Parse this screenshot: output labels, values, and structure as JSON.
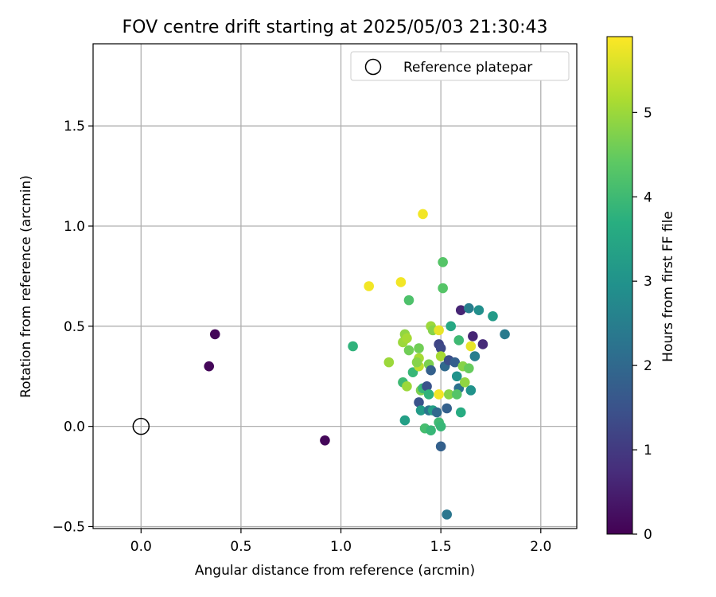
{
  "chart_data": {
    "type": "scatter",
    "title": "FOV centre drift starting at 2025/05/03 21:30:43",
    "xlabel": "Angular distance from reference (arcmin)",
    "ylabel": "Rotation from reference (arcmin)",
    "xlim": [
      -0.24,
      2.18
    ],
    "ylim": [
      -0.51,
      1.91
    ],
    "xticks": [
      0.0,
      0.5,
      1.0,
      1.5,
      2.0
    ],
    "xtick_labels": [
      "0.0",
      "0.5",
      "1.0",
      "1.5",
      "2.0"
    ],
    "yticks": [
      -0.5,
      0.0,
      0.5,
      1.0,
      1.5
    ],
    "ytick_labels": [
      "−0.5",
      "0.0",
      "0.5",
      "1.0",
      "1.5"
    ],
    "grid": true,
    "legend": {
      "placement": "top-right",
      "entries": [
        "Reference platepar"
      ]
    },
    "reference_point": {
      "name": "Reference platepar",
      "x": 0.0,
      "y": 0.0
    },
    "colorbar": {
      "label": "Hours from first FF file",
      "colormap": "viridis",
      "range": [
        0,
        5.9
      ],
      "ticks": [
        0,
        1,
        2,
        3,
        4,
        5
      ],
      "tick_labels": [
        "0",
        "1",
        "2",
        "3",
        "4",
        "5"
      ]
    },
    "points": [
      {
        "x": 0.37,
        "y": 0.46,
        "t": 0.1
      },
      {
        "x": 0.34,
        "y": 0.3,
        "t": 0.1
      },
      {
        "x": 0.92,
        "y": -0.07,
        "t": 0.1
      },
      {
        "x": 1.41,
        "y": 1.06,
        "t": 5.8
      },
      {
        "x": 1.14,
        "y": 0.7,
        "t": 5.8
      },
      {
        "x": 1.3,
        "y": 0.72,
        "t": 5.8
      },
      {
        "x": 1.51,
        "y": 0.82,
        "t": 4.3
      },
      {
        "x": 1.51,
        "y": 0.69,
        "t": 4.3
      },
      {
        "x": 1.34,
        "y": 0.63,
        "t": 4.2
      },
      {
        "x": 1.06,
        "y": 0.4,
        "t": 3.8
      },
      {
        "x": 1.24,
        "y": 0.32,
        "t": 5.0
      },
      {
        "x": 1.31,
        "y": 0.22,
        "t": 4.0
      },
      {
        "x": 1.33,
        "y": 0.2,
        "t": 5.0
      },
      {
        "x": 1.32,
        "y": 0.03,
        "t": 3.3
      },
      {
        "x": 1.32,
        "y": 0.46,
        "t": 4.9
      },
      {
        "x": 1.31,
        "y": 0.42,
        "t": 5.0
      },
      {
        "x": 1.34,
        "y": 0.38,
        "t": 4.6
      },
      {
        "x": 1.33,
        "y": 0.44,
        "t": 5.1
      },
      {
        "x": 1.36,
        "y": 0.27,
        "t": 3.9
      },
      {
        "x": 1.39,
        "y": 0.39,
        "t": 4.6
      },
      {
        "x": 1.39,
        "y": 0.3,
        "t": 5.3
      },
      {
        "x": 1.39,
        "y": 0.34,
        "t": 5.1
      },
      {
        "x": 1.38,
        "y": 0.32,
        "t": 4.8
      },
      {
        "x": 1.4,
        "y": 0.18,
        "t": 4.7
      },
      {
        "x": 1.41,
        "y": 0.19,
        "t": 3.9
      },
      {
        "x": 1.39,
        "y": 0.12,
        "t": 1.5
      },
      {
        "x": 1.4,
        "y": 0.08,
        "t": 3.2
      },
      {
        "x": 1.43,
        "y": 0.2,
        "t": 1.5
      },
      {
        "x": 1.44,
        "y": 0.16,
        "t": 3.8
      },
      {
        "x": 1.44,
        "y": 0.31,
        "t": 4.7
      },
      {
        "x": 1.45,
        "y": 0.28,
        "t": 1.8
      },
      {
        "x": 1.42,
        "y": -0.01,
        "t": 4.1
      },
      {
        "x": 1.45,
        "y": -0.02,
        "t": 3.9
      },
      {
        "x": 1.44,
        "y": 0.08,
        "t": 2.3
      },
      {
        "x": 1.46,
        "y": 0.08,
        "t": 3.3
      },
      {
        "x": 1.45,
        "y": 0.5,
        "t": 5.0
      },
      {
        "x": 1.46,
        "y": 0.48,
        "t": 4.8
      },
      {
        "x": 1.49,
        "y": 0.48,
        "t": 5.7
      },
      {
        "x": 1.49,
        "y": 0.41,
        "t": 1.2
      },
      {
        "x": 1.5,
        "y": 0.39,
        "t": 1.3
      },
      {
        "x": 1.5,
        "y": 0.35,
        "t": 5.1
      },
      {
        "x": 1.49,
        "y": 0.16,
        "t": 5.8
      },
      {
        "x": 1.49,
        "y": 0.02,
        "t": 4.0
      },
      {
        "x": 1.5,
        "y": 0.0,
        "t": 3.9
      },
      {
        "x": 1.48,
        "y": 0.07,
        "t": 2.0
      },
      {
        "x": 1.5,
        "y": -0.1,
        "t": 1.8
      },
      {
        "x": 1.52,
        "y": 0.3,
        "t": 2.0
      },
      {
        "x": 1.54,
        "y": 0.33,
        "t": 1.4
      },
      {
        "x": 1.55,
        "y": 0.5,
        "t": 3.5
      },
      {
        "x": 1.53,
        "y": 0.09,
        "t": 1.8
      },
      {
        "x": 1.54,
        "y": 0.16,
        "t": 4.8
      },
      {
        "x": 1.53,
        "y": -0.44,
        "t": 2.3
      },
      {
        "x": 1.57,
        "y": 0.32,
        "t": 1.8
      },
      {
        "x": 1.59,
        "y": 0.43,
        "t": 4.0
      },
      {
        "x": 1.58,
        "y": 0.25,
        "t": 3.0
      },
      {
        "x": 1.59,
        "y": 0.19,
        "t": 2.2
      },
      {
        "x": 1.58,
        "y": 0.16,
        "t": 4.3
      },
      {
        "x": 1.6,
        "y": 0.07,
        "t": 3.6
      },
      {
        "x": 1.61,
        "y": 0.3,
        "t": 4.8
      },
      {
        "x": 1.62,
        "y": 0.22,
        "t": 4.9
      },
      {
        "x": 1.64,
        "y": 0.29,
        "t": 4.5
      },
      {
        "x": 1.6,
        "y": 0.58,
        "t": 0.6
      },
      {
        "x": 1.64,
        "y": 0.59,
        "t": 2.5
      },
      {
        "x": 1.69,
        "y": 0.58,
        "t": 2.9
      },
      {
        "x": 1.65,
        "y": 0.4,
        "t": 5.7
      },
      {
        "x": 1.66,
        "y": 0.45,
        "t": 0.6
      },
      {
        "x": 1.67,
        "y": 0.35,
        "t": 2.5
      },
      {
        "x": 1.71,
        "y": 0.41,
        "t": 0.7
      },
      {
        "x": 1.65,
        "y": 0.18,
        "t": 3.0
      },
      {
        "x": 1.76,
        "y": 0.55,
        "t": 3.2
      },
      {
        "x": 1.82,
        "y": 0.46,
        "t": 2.4
      }
    ]
  }
}
